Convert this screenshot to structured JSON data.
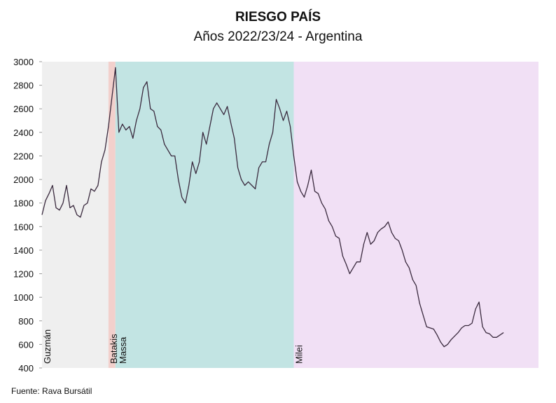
{
  "chart_data": {
    "type": "line",
    "title": "RIESGO PAÍS",
    "subtitle": "Años 2022/23/24 - Argentina",
    "source": "Fuente: Rava Bursátil",
    "color": "#3a2a3e",
    "xlim": [
      0,
      142
    ],
    "ylim": [
      400,
      3000
    ],
    "yticks": [
      400,
      600,
      800,
      1000,
      1200,
      1400,
      1600,
      1800,
      2000,
      2200,
      2400,
      2600,
      2800,
      3000
    ],
    "regions": [
      {
        "label": "Guzmán",
        "start": 0,
        "end": 19,
        "color": "#efefef"
      },
      {
        "label": "Batakis",
        "start": 19,
        "end": 21,
        "color": "#f2d0cc"
      },
      {
        "label": "Massa",
        "start": 21,
        "end": 72,
        "color": "#c2e4e3"
      },
      {
        "label": "Milei",
        "start": 72,
        "end": 142,
        "color": "#f1e0f5"
      }
    ],
    "values": [
      1700,
      1820,
      1880,
      1950,
      1760,
      1740,
      1800,
      1950,
      1760,
      1780,
      1700,
      1680,
      1780,
      1800,
      1920,
      1900,
      1950,
      2150,
      2250,
      2450,
      2700,
      2950,
      2400,
      2470,
      2420,
      2450,
      2350,
      2500,
      2600,
      2780,
      2830,
      2600,
      2580,
      2450,
      2420,
      2300,
      2250,
      2200,
      2200,
      2000,
      1850,
      1800,
      1950,
      2150,
      2050,
      2150,
      2400,
      2300,
      2450,
      2600,
      2650,
      2600,
      2550,
      2620,
      2480,
      2350,
      2100,
      2000,
      1950,
      1980,
      1950,
      1920,
      2100,
      2150,
      2150,
      2300,
      2400,
      2680,
      2600,
      2500,
      2580,
      2450,
      2200,
      1980,
      1900,
      1850,
      1950,
      2080,
      1900,
      1880,
      1800,
      1750,
      1650,
      1600,
      1520,
      1500,
      1350,
      1280,
      1200,
      1250,
      1300,
      1300,
      1450,
      1550,
      1450,
      1480,
      1550,
      1580,
      1600,
      1640,
      1550,
      1500,
      1480,
      1400,
      1300,
      1250,
      1150,
      1100,
      950,
      850,
      750,
      740,
      730,
      680,
      620,
      580,
      600,
      640,
      670,
      700,
      740,
      760,
      760,
      780,
      900,
      960,
      750,
      700,
      690,
      660,
      660,
      680,
      700
    ]
  }
}
